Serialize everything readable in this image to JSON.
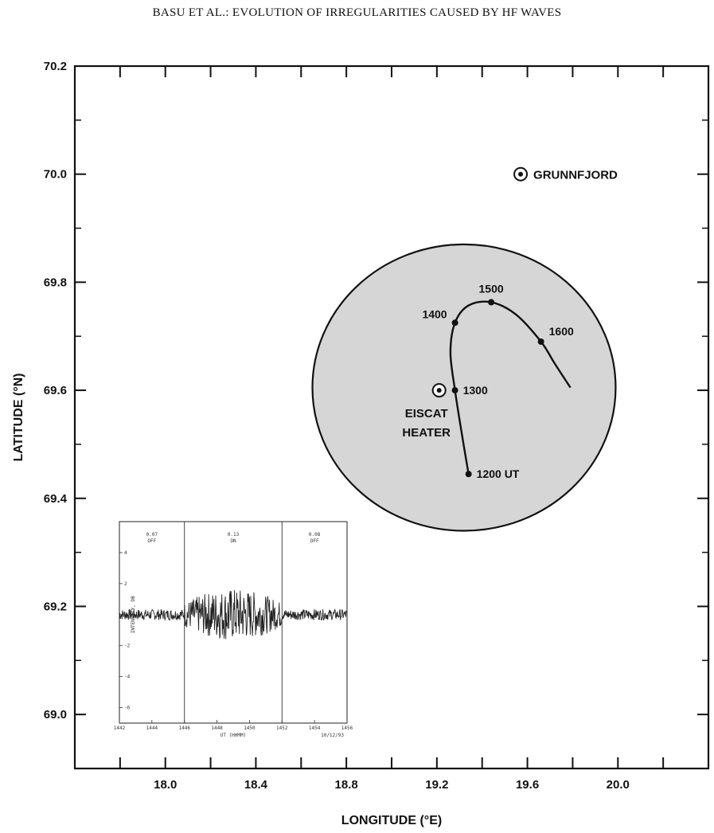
{
  "header": {
    "running_title": "BASU ET AL.: EVOLUTION OF IRREGULARITIES CAUSED BY HF WAVES"
  },
  "chart_data": {
    "type": "line",
    "xlabel": "LONGITUDE (°E)",
    "ylabel": "LATITUDE (°N)",
    "xlim": [
      17.6,
      20.4
    ],
    "ylim": [
      68.9,
      70.2
    ],
    "x_ticks": [
      18.0,
      18.4,
      18.8,
      19.2,
      19.6,
      20.0
    ],
    "x_tick_labels": [
      "18.0",
      "18.4",
      "18.8",
      "19.2",
      "19.6",
      "20.0"
    ],
    "y_ticks": [
      69.0,
      69.2,
      69.4,
      69.6,
      69.8,
      70.0,
      70.2
    ],
    "y_tick_labels": [
      "69.0",
      "69.2",
      "69.4",
      "69.6",
      "69.8",
      "70.0",
      "70.2"
    ],
    "grid": false,
    "series": [
      {
        "track_points": [
          {
            "x": 19.34,
            "y": 69.445
          },
          {
            "x": 19.31,
            "y": 69.52
          },
          {
            "x": 19.28,
            "y": 69.6
          },
          {
            "x": 19.26,
            "y": 69.67
          },
          {
            "x": 19.28,
            "y": 69.725
          },
          {
            "x": 19.34,
            "y": 69.757
          },
          {
            "x": 19.44,
            "y": 69.763
          },
          {
            "x": 19.55,
            "y": 69.74
          },
          {
            "x": 19.66,
            "y": 69.69
          },
          {
            "x": 19.72,
            "y": 69.65
          },
          {
            "x": 19.79,
            "y": 69.605
          }
        ],
        "time_marks": [
          {
            "label": "1200 UT",
            "x": 19.34,
            "y": 69.445
          },
          {
            "label": "1300",
            "x": 19.28,
            "y": 69.6
          },
          {
            "label": "1400",
            "x": 19.28,
            "y": 69.725
          },
          {
            "label": "1500",
            "x": 19.44,
            "y": 69.763
          },
          {
            "label": "1600",
            "x": 19.66,
            "y": 69.69
          }
        ]
      }
    ],
    "region": {
      "shape": "ellipse",
      "center": {
        "x": 19.32,
        "y": 69.605
      },
      "half_width_lon": 0.67,
      "half_height_lat": 0.265,
      "fill": "#d6d6d6"
    },
    "sites": [
      {
        "label_lines": [
          "EISCAT",
          "HEATER"
        ],
        "x": 19.21,
        "y": 69.6
      },
      {
        "label_lines": [
          "GRUNNFJORD"
        ],
        "x": 19.57,
        "y": 70.0
      }
    ],
    "inset": {
      "type": "line",
      "ylabel": "INTENSITY, DB",
      "xlabel": "UT (HHMM)",
      "x_ticks": [
        "1442",
        "1444",
        "1446",
        "1448",
        "1450",
        "1452",
        "1454",
        "1456"
      ],
      "y_ticks": [
        "4",
        "2",
        "0",
        "-2",
        "-4",
        "-6"
      ],
      "date": "10/12/93",
      "panel_labels": [
        [
          "0.07",
          "OFF"
        ],
        [
          "0.13",
          "ON"
        ],
        [
          "0.08",
          "OFF"
        ]
      ],
      "xlim": [
        1442,
        1456
      ],
      "ylim": [
        -7,
        6
      ]
    }
  }
}
